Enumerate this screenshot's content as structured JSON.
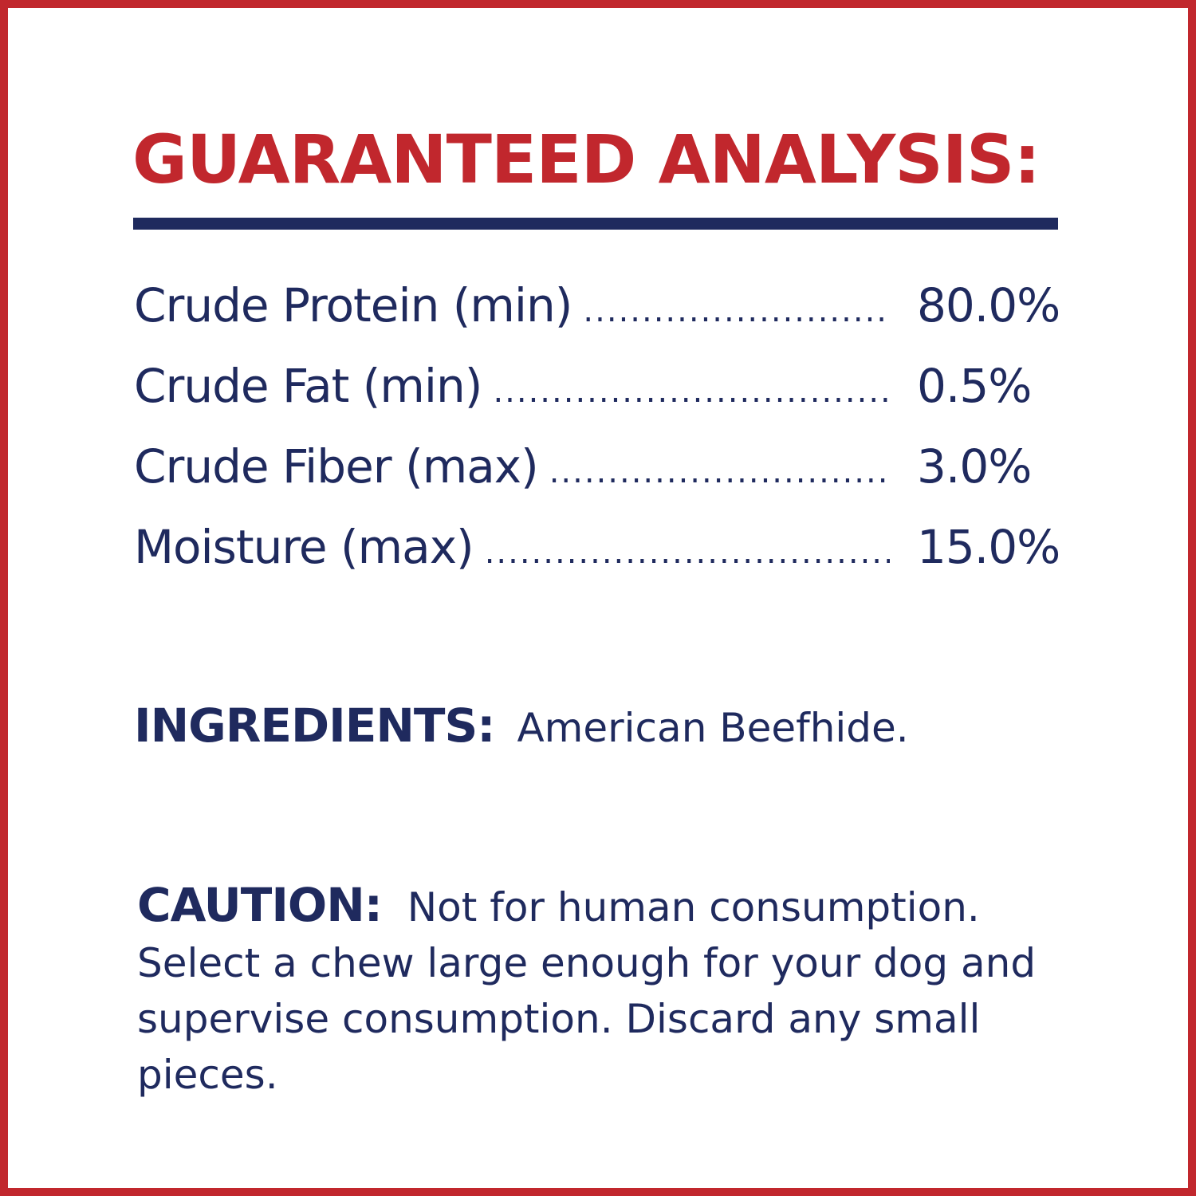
{
  "colors": {
    "accent_red": "#c1272d",
    "navy": "#1f2a5e"
  },
  "title": "GUARANTEED ANALYSIS:",
  "analysis": [
    {
      "label": "Crude Protein (min)",
      "value": "80.0%"
    },
    {
      "label": "Crude Fat (min)",
      "value": "0.5%"
    },
    {
      "label": "Crude Fiber (max)",
      "value": "3.0%"
    },
    {
      "label": "Moisture (max)",
      "value": "15.0%"
    }
  ],
  "ingredients": {
    "heading": "INGREDIENTS:",
    "text": "American Beefhide."
  },
  "caution": {
    "heading": "CAUTION:",
    "text": "Not for human consumption. Select a chew large enough for your dog and supervise consumption. Discard any small pieces."
  }
}
